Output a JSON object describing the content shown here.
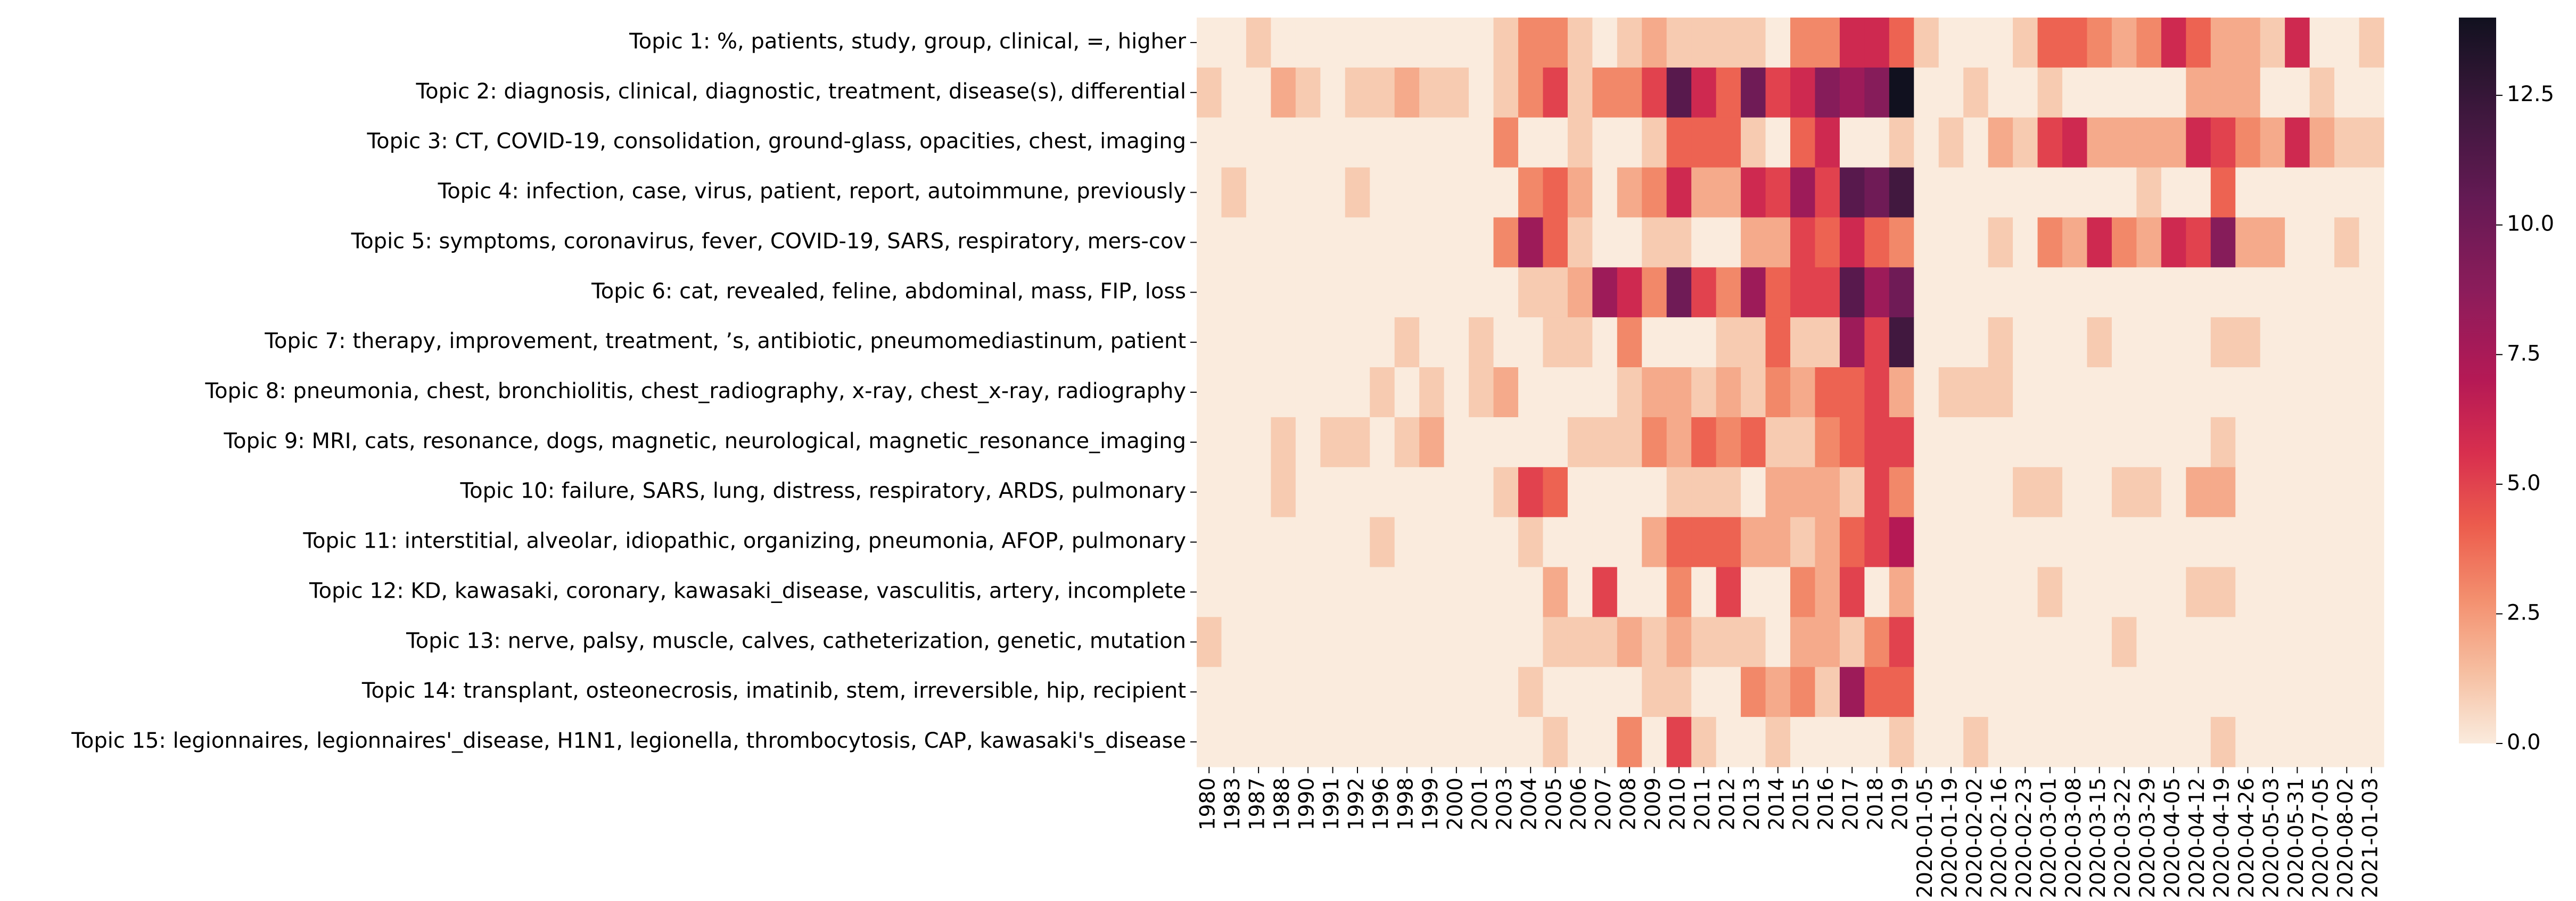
{
  "chart_data": {
    "type": "heatmap",
    "title": "",
    "xlabel": "",
    "ylabel": "",
    "x_labels": [
      "1980",
      "1983",
      "1987",
      "1988",
      "1990",
      "1991",
      "1992",
      "1996",
      "1998",
      "1999",
      "2000",
      "2001",
      "2003",
      "2004",
      "2005",
      "2006",
      "2007",
      "2008",
      "2009",
      "2010",
      "2011",
      "2012",
      "2013",
      "2014",
      "2015",
      "2016",
      "2017",
      "2018",
      "2019",
      "2020-01-05",
      "2020-01-19",
      "2020-02-02",
      "2020-02-16",
      "2020-02-23",
      "2020-03-01",
      "2020-03-08",
      "2020-03-15",
      "2020-03-22",
      "2020-03-29",
      "2020-04-05",
      "2020-04-12",
      "2020-04-19",
      "2020-04-26",
      "2020-05-03",
      "2020-05-31",
      "2020-07-05",
      "2020-08-02",
      "2021-01-03"
    ],
    "y_labels": [
      "Topic 1: %, patients, study, group, clinical, =, higher",
      "Topic 2: diagnosis, clinical, diagnostic, treatment, disease(s), differential",
      "Topic 3: CT, COVID-19, consolidation, ground-glass, opacities, chest, imaging",
      "Topic 4: infection, case, virus, patient, report, autoimmune, previously",
      "Topic 5: symptoms, coronavirus, fever, COVID-19, SARS, respiratory, mers-cov",
      "Topic 6: cat, revealed, feline, abdominal, mass, FIP, loss",
      "Topic 7: therapy, improvement, treatment, ’s, antibiotic, pneumomediastinum, patient",
      "Topic 8: pneumonia, chest, bronchiolitis, chest_radiography, x-ray, chest_x-ray, radiography",
      "Topic 9: MRI, cats, resonance, dogs, magnetic, neurological, magnetic_resonance_imaging",
      "Topic 10: failure, SARS, lung, distress, respiratory, ARDS, pulmonary",
      "Topic 11: interstitial, alveolar, idiopathic, organizing, pneumonia, AFOP, pulmonary",
      "Topic 12: KD, kawasaki, coronary, kawasaki_disease, vasculitis, artery, incomplete",
      "Topic 13: nerve, palsy, muscle, calves, catheterization, genetic, mutation",
      "Topic 14: transplant, osteonecrosis, imatinib, stem, irreversible, hip, recipient",
      "Topic 15: legionnaires, legionnaires'_disease, H1N1, legionella, thrombocytosis, CAP, kawasaki's_disease"
    ],
    "values": [
      [
        0,
        0,
        1,
        0,
        0,
        0,
        0,
        0,
        0,
        0,
        0,
        0,
        1,
        3,
        3,
        1,
        0,
        1,
        2,
        1,
        1,
        1,
        1,
        0,
        3,
        3,
        6,
        6,
        4,
        1,
        0,
        0,
        0,
        1,
        4,
        4,
        3,
        2,
        3,
        6,
        4,
        2,
        2,
        1,
        6,
        0,
        0,
        1
      ],
      [
        1,
        0,
        0,
        2,
        1,
        0,
        1,
        1,
        2,
        1,
        1,
        0,
        1,
        3,
        5,
        1,
        3,
        3,
        5,
        11,
        6,
        4,
        10,
        5,
        6,
        9,
        8,
        9,
        14,
        0,
        0,
        1,
        0,
        0,
        1,
        0,
        0,
        0,
        0,
        0,
        2,
        2,
        2,
        0,
        0,
        1,
        0,
        0
      ],
      [
        0,
        0,
        0,
        0,
        0,
        0,
        0,
        0,
        0,
        0,
        0,
        0,
        3,
        0,
        0,
        1,
        0,
        0,
        1,
        4,
        4,
        4,
        1,
        0,
        4,
        6,
        0,
        0,
        1,
        0,
        1,
        0,
        2,
        1,
        5,
        6,
        2,
        2,
        2,
        2,
        6,
        5,
        3,
        2,
        6,
        2,
        1,
        1
      ],
      [
        0,
        1,
        0,
        0,
        0,
        0,
        1,
        0,
        0,
        0,
        0,
        0,
        0,
        3,
        4,
        2,
        0,
        2,
        3,
        6,
        2,
        2,
        6,
        5,
        8,
        5,
        11,
        10,
        12,
        0,
        0,
        0,
        0,
        0,
        0,
        0,
        0,
        0,
        1,
        0,
        0,
        4,
        0,
        0,
        0,
        0,
        0,
        0
      ],
      [
        0,
        0,
        0,
        0,
        0,
        0,
        0,
        0,
        0,
        0,
        0,
        0,
        3,
        8,
        4,
        1,
        0,
        0,
        1,
        1,
        0,
        0,
        2,
        2,
        5,
        4,
        6,
        4,
        3,
        0,
        0,
        0,
        1,
        0,
        3,
        2,
        6,
        3,
        2,
        6,
        5,
        9,
        2,
        2,
        0,
        0,
        1,
        0
      ],
      [
        0,
        0,
        0,
        0,
        0,
        0,
        0,
        0,
        0,
        0,
        0,
        0,
        0,
        1,
        1,
        2,
        8,
        6,
        3,
        10,
        5,
        3,
        8,
        4,
        5,
        5,
        11,
        8,
        10,
        0,
        0,
        0,
        0,
        0,
        0,
        0,
        0,
        0,
        0,
        0,
        0,
        0,
        0,
        0,
        0,
        0,
        0,
        0
      ],
      [
        0,
        0,
        0,
        0,
        0,
        0,
        0,
        0,
        1,
        0,
        0,
        1,
        0,
        0,
        1,
        1,
        0,
        3,
        0,
        0,
        0,
        1,
        1,
        4,
        1,
        1,
        8,
        5,
        12,
        0,
        0,
        0,
        1,
        0,
        0,
        0,
        1,
        0,
        0,
        0,
        0,
        1,
        1,
        0,
        0,
        0,
        0,
        0
      ],
      [
        0,
        0,
        0,
        0,
        0,
        0,
        0,
        1,
        0,
        1,
        0,
        1,
        2,
        0,
        0,
        0,
        0,
        1,
        2,
        2,
        1,
        2,
        1,
        3,
        2,
        4,
        4,
        5,
        2,
        0,
        1,
        1,
        1,
        0,
        0,
        0,
        0,
        0,
        0,
        0,
        0,
        0,
        0,
        0,
        0,
        0,
        0,
        0
      ],
      [
        0,
        0,
        0,
        1,
        0,
        1,
        1,
        0,
        1,
        2,
        0,
        0,
        0,
        0,
        0,
        1,
        1,
        1,
        3,
        2,
        4,
        3,
        4,
        1,
        1,
        3,
        4,
        5,
        5,
        0,
        0,
        0,
        0,
        0,
        0,
        0,
        0,
        0,
        0,
        0,
        0,
        1,
        0,
        0,
        0,
        0,
        0,
        0
      ],
      [
        0,
        0,
        0,
        1,
        0,
        0,
        0,
        0,
        0,
        0,
        0,
        0,
        1,
        5,
        4,
        0,
        0,
        0,
        0,
        1,
        1,
        1,
        0,
        2,
        2,
        2,
        1,
        5,
        3,
        0,
        0,
        0,
        0,
        1,
        1,
        0,
        0,
        1,
        1,
        0,
        2,
        2,
        0,
        0,
        0,
        0,
        0,
        0
      ],
      [
        0,
        0,
        0,
        0,
        0,
        0,
        0,
        1,
        0,
        0,
        0,
        0,
        0,
        1,
        0,
        0,
        0,
        0,
        2,
        4,
        4,
        4,
        2,
        2,
        1,
        2,
        4,
        5,
        7,
        0,
        0,
        0,
        0,
        0,
        0,
        0,
        0,
        0,
        0,
        0,
        0,
        0,
        0,
        0,
        0,
        0,
        0,
        0
      ],
      [
        0,
        0,
        0,
        0,
        0,
        0,
        0,
        0,
        0,
        0,
        0,
        0,
        0,
        0,
        2,
        0,
        5,
        0,
        0,
        3,
        0,
        5,
        0,
        0,
        3,
        2,
        5,
        0,
        2,
        0,
        0,
        0,
        0,
        0,
        1,
        0,
        0,
        0,
        0,
        0,
        1,
        1,
        0,
        0,
        0,
        0,
        0,
        0
      ],
      [
        1,
        0,
        0,
        0,
        0,
        0,
        0,
        0,
        0,
        0,
        0,
        0,
        0,
        0,
        1,
        1,
        1,
        2,
        1,
        2,
        1,
        1,
        1,
        0,
        2,
        2,
        1,
        3,
        5,
        0,
        0,
        0,
        0,
        0,
        0,
        0,
        0,
        1,
        0,
        0,
        0,
        0,
        0,
        0,
        0,
        0,
        0,
        0
      ],
      [
        0,
        0,
        0,
        0,
        0,
        0,
        0,
        0,
        0,
        0,
        0,
        0,
        0,
        1,
        0,
        0,
        0,
        0,
        1,
        1,
        0,
        0,
        3,
        2,
        3,
        1,
        8,
        4,
        4,
        0,
        0,
        0,
        0,
        0,
        0,
        0,
        0,
        0,
        0,
        0,
        0,
        0,
        0,
        0,
        0,
        0,
        0,
        0
      ],
      [
        0,
        0,
        0,
        0,
        0,
        0,
        0,
        0,
        0,
        0,
        0,
        0,
        0,
        0,
        1,
        0,
        0,
        3,
        0,
        5,
        1,
        0,
        0,
        1,
        0,
        0,
        0,
        0,
        1,
        0,
        0,
        1,
        0,
        0,
        0,
        0,
        0,
        0,
        0,
        0,
        0,
        1,
        0,
        0,
        0,
        0,
        0,
        0
      ]
    ],
    "vmin": 0,
    "vmax": 14,
    "colormap": "rocket_r",
    "colorbar": {
      "ticks": [
        0.0,
        2.5,
        5.0,
        7.5,
        10.0,
        12.5
      ],
      "tick_labels": [
        "0.0",
        "2.5",
        "5.0",
        "7.5",
        "10.0",
        "12.5"
      ]
    },
    "grid": false,
    "legend": "colorbar-right"
  }
}
